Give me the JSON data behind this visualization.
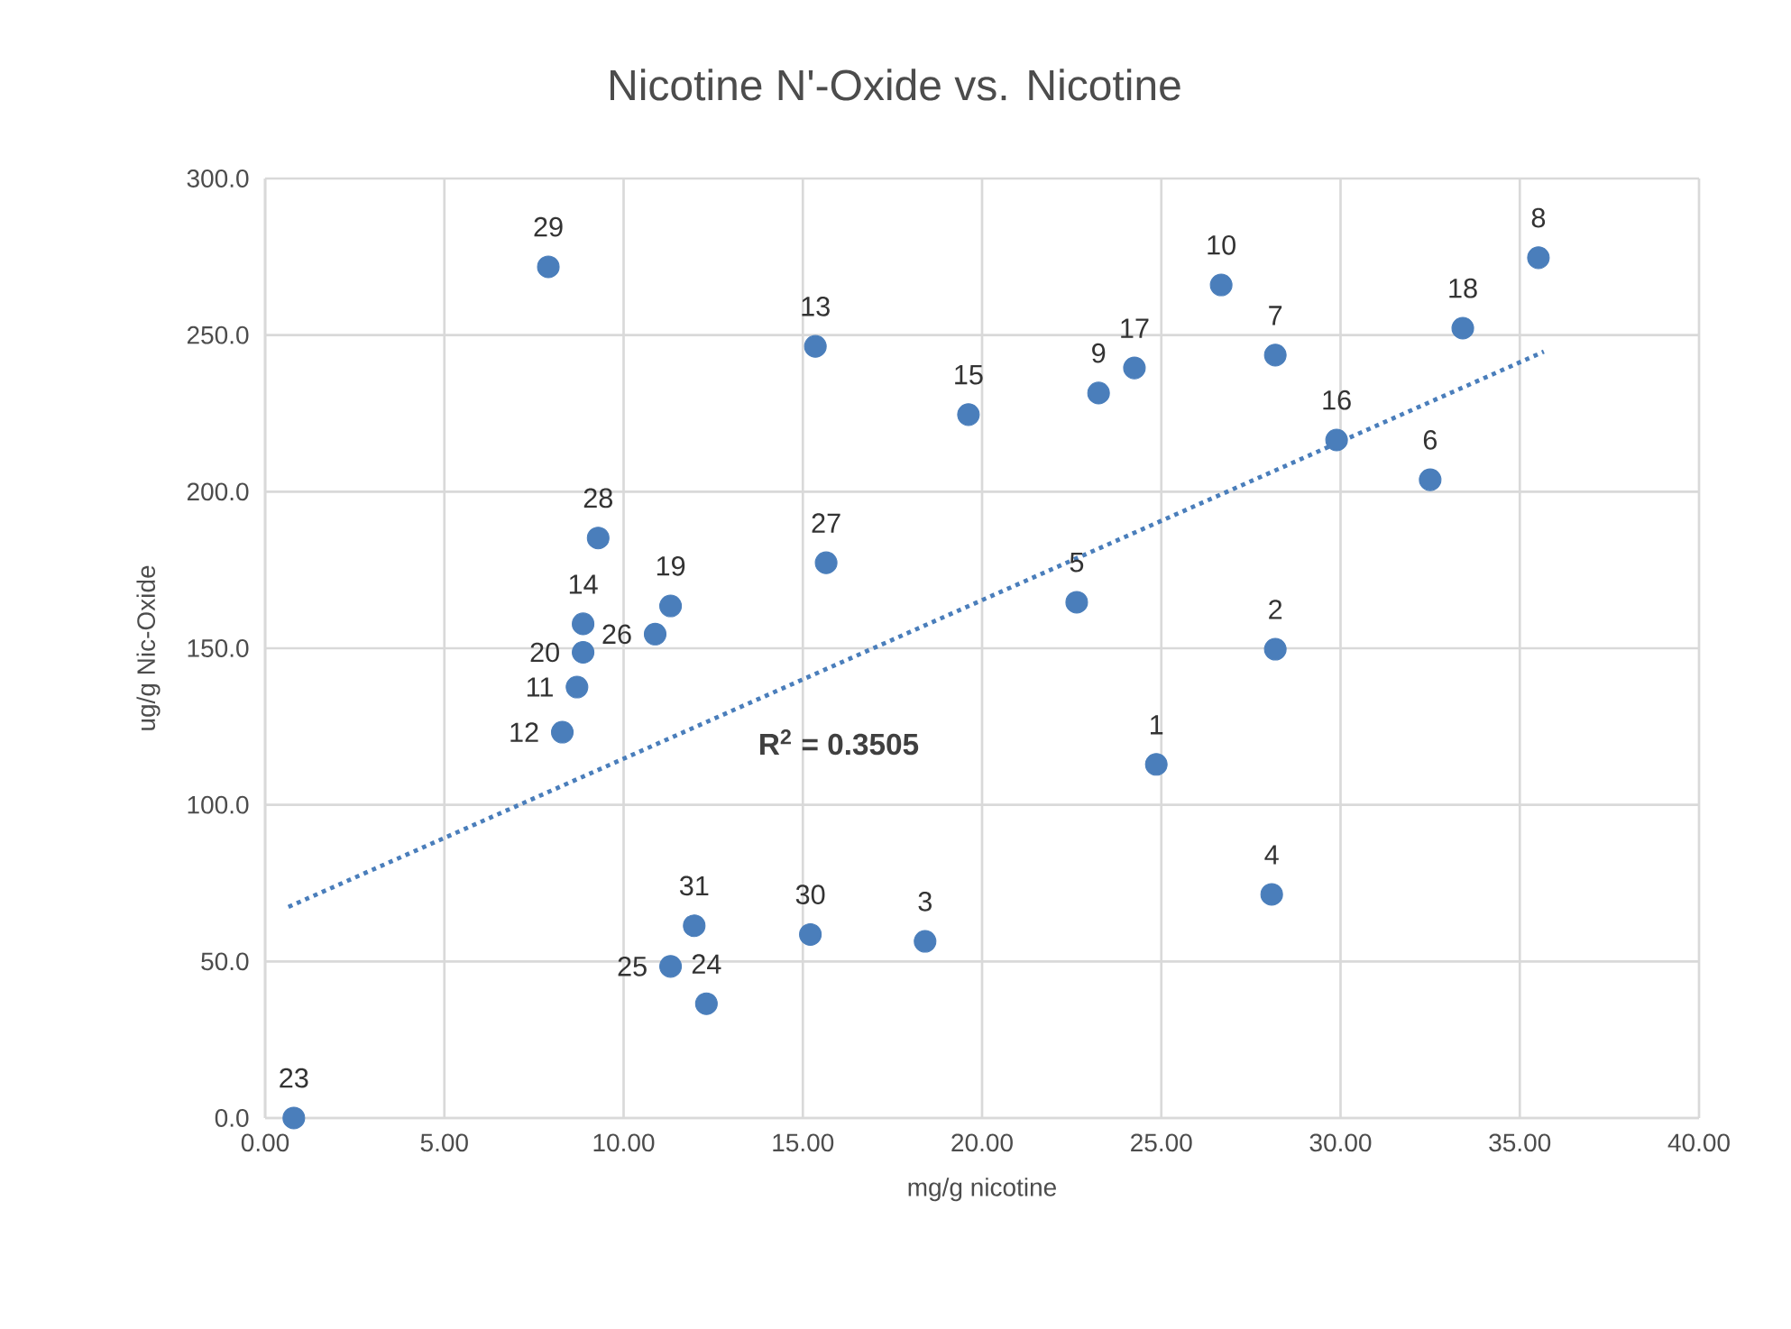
{
  "chart_data": {
    "type": "scatter",
    "title": "Nicotine N'-Oxide vs. Nicotine",
    "xlabel": "mg/g nicotine",
    "ylabel": "ug/g Nic-Oxide",
    "series": [
      {
        "color": "#4a7ebb",
        "marker": "circle",
        "x": [
          24.86,
          28.18,
          18.41,
          28.08,
          22.64,
          32.5,
          28.18,
          35.52,
          23.25,
          26.67,
          8.7,
          8.29,
          15.35,
          8.87,
          19.62,
          29.89,
          24.25,
          33.41,
          11.31,
          8.87,
          0.8,
          10.88,
          15.65,
          9.29,
          7.9,
          15.21,
          11.97,
          11.31,
          12.31
        ],
        "values": [
          112.9,
          149.7,
          56.4,
          71.4,
          164.7,
          203.8,
          243.6,
          274.7,
          231.5,
          266.0,
          137.6,
          123.2,
          246.4,
          157.8,
          224.6,
          216.5,
          239.5,
          252.2,
          163.5,
          148.7,
          0,
          154.5,
          177.3,
          185.2,
          271.8,
          58.6,
          61.4,
          48.4,
          36.5
        ]
      },
      {
        "type": "line",
        "color": "#4a7ebb",
        "line_style": "dotted",
        "marker": "none",
        "x": [
          0.65,
          35.67
        ],
        "values": [
          67.4,
          244.7
        ]
      }
    ],
    "annotations": [
      {
        "text": "1",
        "x": 24.86,
        "y": 112.9
      },
      {
        "text": "2",
        "x": 28.18,
        "y": 149.7
      },
      {
        "text": "3",
        "x": 18.41,
        "y": 56.4
      },
      {
        "text": "4",
        "x": 28.08,
        "y": 71.4
      },
      {
        "text": "5",
        "x": 22.64,
        "y": 164.7
      },
      {
        "text": "6",
        "x": 32.5,
        "y": 203.8
      },
      {
        "text": "7",
        "x": 28.18,
        "y": 243.6
      },
      {
        "text": "8",
        "x": 35.52,
        "y": 274.7
      },
      {
        "text": "9",
        "x": 23.25,
        "y": 231.5
      },
      {
        "text": "10",
        "x": 26.67,
        "y": 266.0
      },
      {
        "text": "11",
        "x": 8.7,
        "y": 137.6
      },
      {
        "text": "12",
        "x": 8.29,
        "y": 123.2
      },
      {
        "text": "13",
        "x": 15.35,
        "y": 246.4
      },
      {
        "text": "14",
        "x": 8.87,
        "y": 157.8
      },
      {
        "text": "15",
        "x": 19.62,
        "y": 224.6
      },
      {
        "text": "16",
        "x": 29.89,
        "y": 216.5
      },
      {
        "text": "17",
        "x": 24.25,
        "y": 239.5
      },
      {
        "text": "18",
        "x": 33.41,
        "y": 252.2
      },
      {
        "text": "19",
        "x": 11.31,
        "y": 163.5
      },
      {
        "text": "20",
        "x": 8.87,
        "y": 148.7
      },
      {
        "text": "23",
        "x": 0.8,
        "y": 0
      },
      {
        "text": "26",
        "x": 10.88,
        "y": 154.5
      },
      {
        "text": "27",
        "x": 15.65,
        "y": 177.3
      },
      {
        "text": "28",
        "x": 9.29,
        "y": 185.2
      },
      {
        "text": "29",
        "x": 7.9,
        "y": 271.8
      },
      {
        "text": "30",
        "x": 15.21,
        "y": 58.6
      },
      {
        "text": "31",
        "x": 11.97,
        "y": 61.4
      },
      {
        "text": "25",
        "x": 11.31,
        "y": 48.4
      },
      {
        "text": "24",
        "x": 12.31,
        "y": 36.5
      },
      "**R$^{2}$ = 0.3505**"
    ],
    "xlim": [
      0,
      40
    ],
    "ylim": [
      0,
      300
    ],
    "xticks": [
      {
        "value": 0,
        "label": "0.00"
      },
      {
        "value": 5,
        "label": "5.00"
      },
      {
        "value": 10,
        "label": "10.00"
      },
      {
        "value": 15,
        "label": "15.00"
      },
      {
        "value": 20,
        "label": "20.00"
      },
      {
        "value": 25,
        "label": "25.00"
      },
      {
        "value": 30,
        "label": "30.00"
      },
      {
        "value": 35,
        "label": "35.00"
      },
      {
        "value": 40,
        "label": "40.00"
      }
    ],
    "yticks": [
      {
        "value": 0,
        "label": "0.0"
      },
      {
        "value": 50,
        "label": "50.0"
      },
      {
        "value": 100,
        "label": "100.0"
      },
      {
        "value": 150,
        "label": "150.0"
      },
      {
        "value": 200,
        "label": "200.0"
      },
      {
        "value": 250,
        "label": "250.0"
      },
      {
        "value": 300,
        "label": "300.0"
      }
    ],
    "grid": true
  }
}
